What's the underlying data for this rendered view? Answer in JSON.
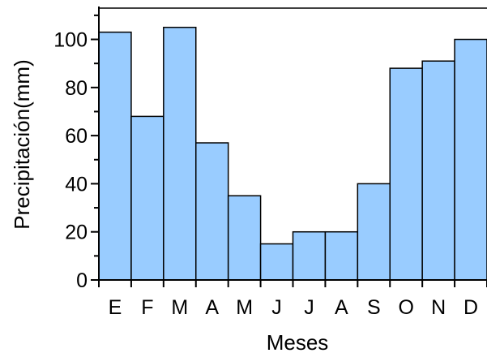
{
  "chart_data": {
    "type": "bar",
    "title": "",
    "xlabel": "Meses",
    "ylabel": "Precipitación(mm)",
    "categories": [
      "E",
      "F",
      "M",
      "A",
      "M",
      "J",
      "J",
      "A",
      "S",
      "O",
      "N",
      "D"
    ],
    "values": [
      103,
      68,
      105,
      57,
      35,
      15,
      20,
      20,
      40,
      88,
      91,
      100
    ],
    "ylim": [
      0,
      113
    ],
    "yticks": [
      0,
      20,
      40,
      60,
      80,
      100
    ],
    "grid": false,
    "legend": "none",
    "colors": {
      "bar_fill": "#99ccff",
      "bar_stroke": "#000000",
      "axis": "#000000"
    }
  }
}
